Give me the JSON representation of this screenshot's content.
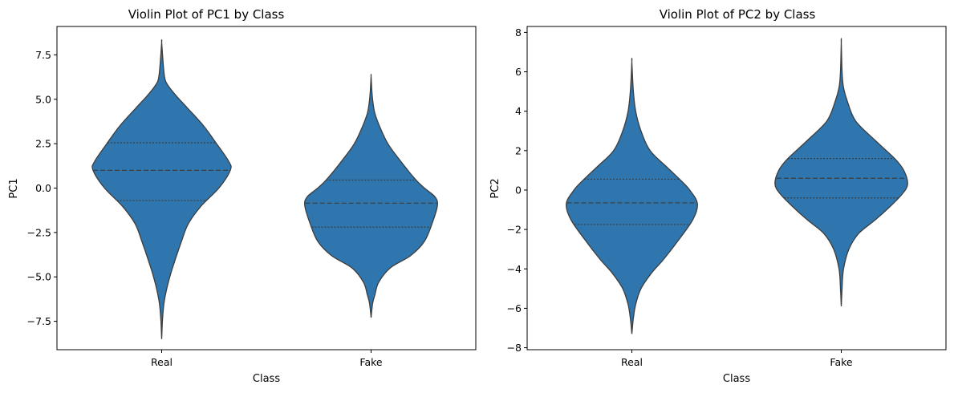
{
  "chart_data": [
    {
      "type": "violin",
      "title": "Violin Plot of PC1 by Class",
      "xlabel": "Class",
      "ylabel": "PC1",
      "ylim": [
        -9.1,
        9.1
      ],
      "yticks": [
        -7.5,
        -5.0,
        -2.5,
        0.0,
        2.5,
        5.0,
        7.5
      ],
      "ytick_labels": [
        "−7.5",
        "−5.0",
        "−2.5",
        "0.0",
        "2.5",
        "5.0",
        "7.5"
      ],
      "categories": [
        "Real",
        "Fake"
      ],
      "color": "#2e76ad",
      "edge_color": "#3d3d3d",
      "violins": [
        {
          "category": "Real",
          "min": -8.5,
          "max": 8.2,
          "quartiles": [
            -0.7,
            1.0,
            2.55
          ],
          "profile": [
            [
              -8.5,
              0.0
            ],
            [
              -7.5,
              0.01
            ],
            [
              -6.5,
              0.03
            ],
            [
              -5.6,
              0.07
            ],
            [
              -4.8,
              0.12
            ],
            [
              -4.0,
              0.18
            ],
            [
              -3.0,
              0.26
            ],
            [
              -2.0,
              0.35
            ],
            [
              -1.0,
              0.52
            ],
            [
              0.0,
              0.75
            ],
            [
              1.0,
              0.9
            ],
            [
              1.5,
              0.88
            ],
            [
              2.5,
              0.72
            ],
            [
              3.5,
              0.55
            ],
            [
              4.5,
              0.34
            ],
            [
              5.2,
              0.19
            ],
            [
              5.8,
              0.08
            ],
            [
              6.2,
              0.04
            ],
            [
              7.0,
              0.02
            ],
            [
              8.2,
              0.0
            ]
          ]
        },
        {
          "category": "Fake",
          "min": -7.3,
          "max": 6.3,
          "quartiles": [
            -2.2,
            -0.85,
            0.45
          ],
          "profile": [
            [
              -7.3,
              0.0
            ],
            [
              -6.5,
              0.02
            ],
            [
              -6.0,
              0.05
            ],
            [
              -5.3,
              0.1
            ],
            [
              -4.5,
              0.25
            ],
            [
              -3.8,
              0.52
            ],
            [
              -3.0,
              0.7
            ],
            [
              -2.0,
              0.8
            ],
            [
              -1.0,
              0.87
            ],
            [
              -0.5,
              0.84
            ],
            [
              0.0,
              0.7
            ],
            [
              0.5,
              0.58
            ],
            [
              1.5,
              0.39
            ],
            [
              2.5,
              0.22
            ],
            [
              3.5,
              0.11
            ],
            [
              4.2,
              0.05
            ],
            [
              4.8,
              0.025
            ],
            [
              5.5,
              0.01
            ],
            [
              6.3,
              0.0
            ]
          ]
        }
      ]
    },
    {
      "type": "violin",
      "title": "Violin Plot of PC2 by Class",
      "xlabel": "Class",
      "ylabel": "PC2",
      "ylim": [
        -8.1,
        8.3
      ],
      "yticks": [
        -8,
        -6,
        -4,
        -2,
        0,
        2,
        4,
        6,
        8
      ],
      "ytick_labels": [
        "−8",
        "−6",
        "−4",
        "−2",
        "0",
        "2",
        "4",
        "6",
        "8"
      ],
      "categories": [
        "Real",
        "Fake"
      ],
      "color": "#2e76ad",
      "edge_color": "#3d3d3d",
      "violins": [
        {
          "category": "Real",
          "min": -7.3,
          "max": 6.5,
          "quartiles": [
            -1.75,
            -0.65,
            0.55
          ],
          "profile": [
            [
              -7.3,
              0.0
            ],
            [
              -6.5,
              0.02
            ],
            [
              -5.8,
              0.05
            ],
            [
              -5.0,
              0.12
            ],
            [
              -4.2,
              0.26
            ],
            [
              -3.5,
              0.42
            ],
            [
              -2.5,
              0.62
            ],
            [
              -1.5,
              0.8
            ],
            [
              -0.7,
              0.86
            ],
            [
              0.0,
              0.76
            ],
            [
              0.5,
              0.64
            ],
            [
              1.2,
              0.45
            ],
            [
              2.0,
              0.24
            ],
            [
              3.0,
              0.12
            ],
            [
              4.0,
              0.05
            ],
            [
              5.0,
              0.02
            ],
            [
              6.5,
              0.0
            ]
          ]
        },
        {
          "category": "Fake",
          "min": -5.9,
          "max": 7.5,
          "quartiles": [
            -0.4,
            0.6,
            1.6
          ],
          "profile": [
            [
              -5.9,
              0.0
            ],
            [
              -5.0,
              0.01
            ],
            [
              -4.0,
              0.03
            ],
            [
              -3.0,
              0.1
            ],
            [
              -2.2,
              0.23
            ],
            [
              -1.5,
              0.45
            ],
            [
              -0.8,
              0.65
            ],
            [
              -0.2,
              0.8
            ],
            [
              0.3,
              0.87
            ],
            [
              1.0,
              0.82
            ],
            [
              1.6,
              0.7
            ],
            [
              2.5,
              0.45
            ],
            [
              3.5,
              0.19
            ],
            [
              4.5,
              0.08
            ],
            [
              5.2,
              0.03
            ],
            [
              6.0,
              0.01
            ],
            [
              7.5,
              0.0
            ]
          ]
        }
      ]
    }
  ]
}
